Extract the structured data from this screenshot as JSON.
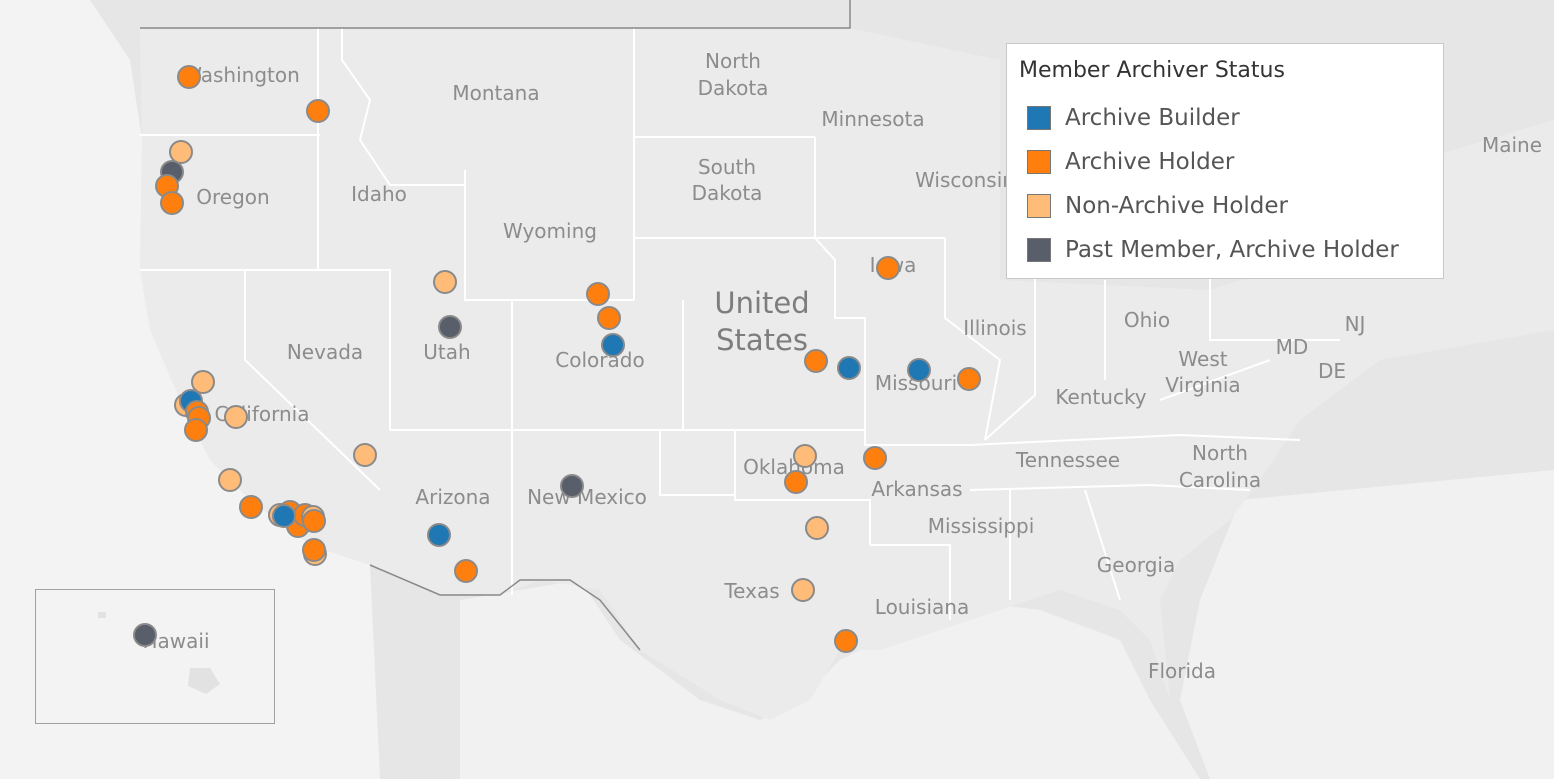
{
  "legend": {
    "title": "Member Archiver Status",
    "items": [
      {
        "label": "Archive Builder",
        "color": "#1f77b4"
      },
      {
        "label": "Archive Holder",
        "color": "#ff7f0e"
      },
      {
        "label": "Non-Archive Holder",
        "color": "#ffbb78"
      },
      {
        "label": "Past Member, Archive Holder",
        "color": "#585e6a"
      }
    ]
  },
  "map": {
    "country_label_line1": "United",
    "country_label_line2": "States",
    "inset_label": "Hawaii",
    "state_labels": [
      "Washington",
      "Montana",
      "North",
      "Dakota",
      "Minnesota",
      "South",
      "Dakota",
      "Oregon",
      "Idaho",
      "Wyoming",
      "Wisconsin",
      "Maine",
      "Iowa",
      "Illinois",
      "Ohio",
      "NJ",
      "MD",
      "DE",
      "Nevada",
      "Utah",
      "Colorado",
      "West",
      "Virginia",
      "Missouri",
      "Kentucky",
      "California",
      "Tennessee",
      "North",
      "Carolina",
      "Oklahoma",
      "Arkansas",
      "Arizona",
      "New Mexico",
      "Mississippi",
      "Georgia",
      "Texas",
      "Louisiana",
      "Florida"
    ]
  },
  "marker_colors": {
    "builder": "#1f77b4",
    "holder": "#ff7f0e",
    "nonholder": "#ffbb78",
    "past": "#585e6a"
  }
}
